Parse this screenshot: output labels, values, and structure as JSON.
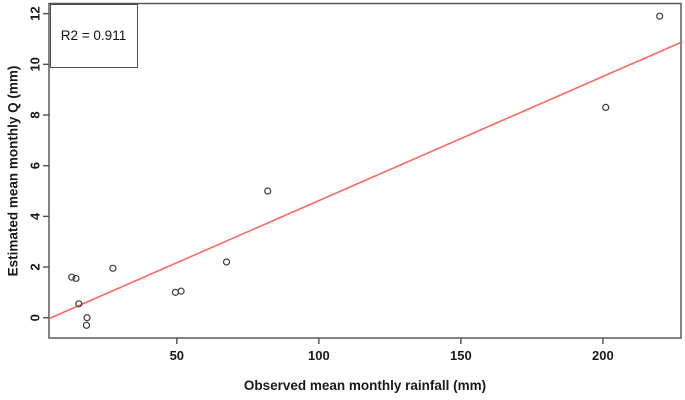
{
  "figure": {
    "kind": "R-style scatter plot with fitted regression line",
    "background": "#ffffff"
  },
  "chart_data": {
    "type": "scatter",
    "title": "",
    "xlabel": "Observed mean monthly rainfall (mm)",
    "ylabel": "Estimated mean monthly Q (mm)",
    "xlim": [
      5,
      227.5
    ],
    "ylim": [
      -0.8,
      12.4
    ],
    "x_ticks": [
      50,
      100,
      150,
      200
    ],
    "y_ticks": [
      0,
      2,
      4,
      6,
      8,
      10,
      12
    ],
    "grid": false,
    "legend_position": "topleft",
    "annotation": "R2 = 0.911",
    "points": [
      [
        13,
        1.6
      ],
      [
        14.5,
        1.55
      ],
      [
        15.5,
        0.55
      ],
      [
        18.4,
        0.0
      ],
      [
        18.2,
        -0.3
      ],
      [
        27.5,
        1.95
      ],
      [
        49.5,
        1.0
      ],
      [
        51.5,
        1.05
      ],
      [
        67.5,
        2.2
      ],
      [
        82,
        5.0
      ],
      [
        201,
        8.3
      ],
      [
        220,
        11.9
      ]
    ],
    "regression_line": {
      "slope": 0.049,
      "intercept": -0.28
    },
    "colors": {
      "line": "#fb6a60",
      "point_stroke": "#3c3c3c",
      "axis": "#4f4f4f",
      "text": "#1a1a1a"
    }
  }
}
